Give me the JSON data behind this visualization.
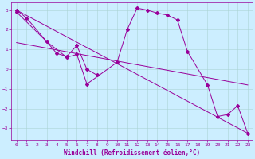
{
  "xlabel": "Windchill (Refroidissement éolien,°C)",
  "background_color": "#cceeff",
  "line_color": "#990099",
  "xlim": [
    -0.5,
    23.5
  ],
  "ylim": [
    -3.6,
    3.4
  ],
  "yticks": [
    -3,
    -2,
    -1,
    0,
    1,
    2,
    3
  ],
  "xticks": [
    0,
    1,
    2,
    3,
    4,
    5,
    6,
    7,
    8,
    9,
    10,
    11,
    12,
    13,
    14,
    15,
    16,
    17,
    18,
    19,
    20,
    21,
    22,
    23
  ],
  "trend1_x": [
    0,
    23
  ],
  "trend1_y": [
    3.0,
    -3.25
  ],
  "trend2_x": [
    0,
    23
  ],
  "trend2_y": [
    1.35,
    -0.8
  ],
  "jagged_x": [
    0,
    3,
    5,
    6,
    7,
    10,
    11,
    12,
    13,
    14,
    15,
    16,
    17,
    19,
    20,
    21,
    22,
    23
  ],
  "jagged_y": [
    2.9,
    1.4,
    0.6,
    0.75,
    -0.75,
    0.35,
    2.0,
    3.1,
    3.0,
    2.85,
    2.75,
    2.5,
    0.9,
    -0.8,
    -2.4,
    -2.3,
    -1.85,
    -3.25
  ],
  "short_x": [
    0,
    1,
    3,
    4,
    5,
    6,
    7,
    8
  ],
  "short_y": [
    3.0,
    2.6,
    1.4,
    0.8,
    0.65,
    1.2,
    0.0,
    -0.3
  ]
}
